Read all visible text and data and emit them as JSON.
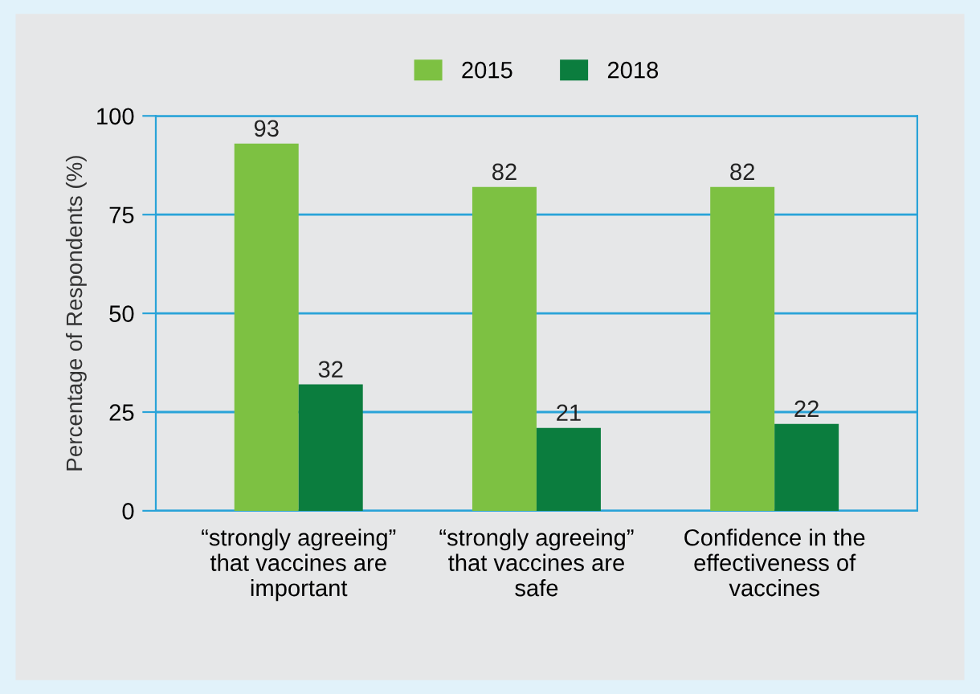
{
  "chart_data": {
    "type": "bar",
    "ylabel": "Percentage of Respondents (%)",
    "categories": [
      "“strongly agreeing”\nthat vaccines are\nimportant",
      "“strongly agreeing”\nthat vaccines are\nsafe",
      "Confidence in the\neffectiveness of\nvaccines"
    ],
    "series": [
      {
        "name": "2015",
        "color": "#7dc142",
        "values": [
          93,
          82,
          82
        ]
      },
      {
        "name": "2018",
        "color": "#0b7d3e",
        "values": [
          32,
          21,
          22
        ]
      }
    ],
    "data_labels": true,
    "ylim": [
      0,
      100
    ],
    "yticks": [
      0,
      25,
      50,
      75,
      100
    ],
    "grid": "y",
    "legend": "top"
  }
}
